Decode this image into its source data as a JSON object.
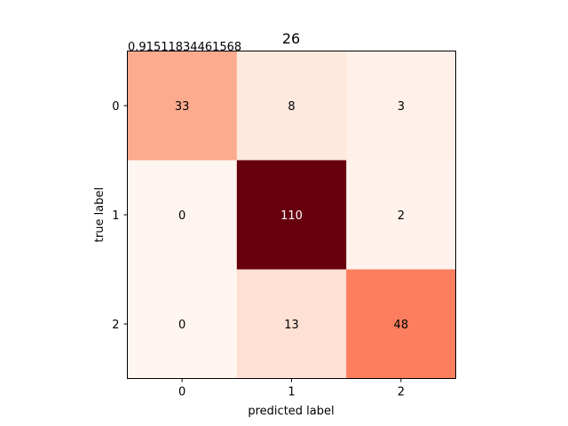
{
  "chart_data": {
    "type": "heatmap",
    "title": "26",
    "annotation": "0.91511834461568",
    "xlabel": "predicted label",
    "ylabel": "true label",
    "x_categories": [
      "0",
      "1",
      "2"
    ],
    "y_categories": [
      "0",
      "1",
      "2"
    ],
    "matrix": [
      [
        33,
        8,
        3
      ],
      [
        0,
        110,
        2
      ],
      [
        0,
        13,
        48
      ]
    ],
    "colormap": "Reds",
    "color_low": "#fff5f0",
    "color_high": "#67000d",
    "grid": false
  }
}
